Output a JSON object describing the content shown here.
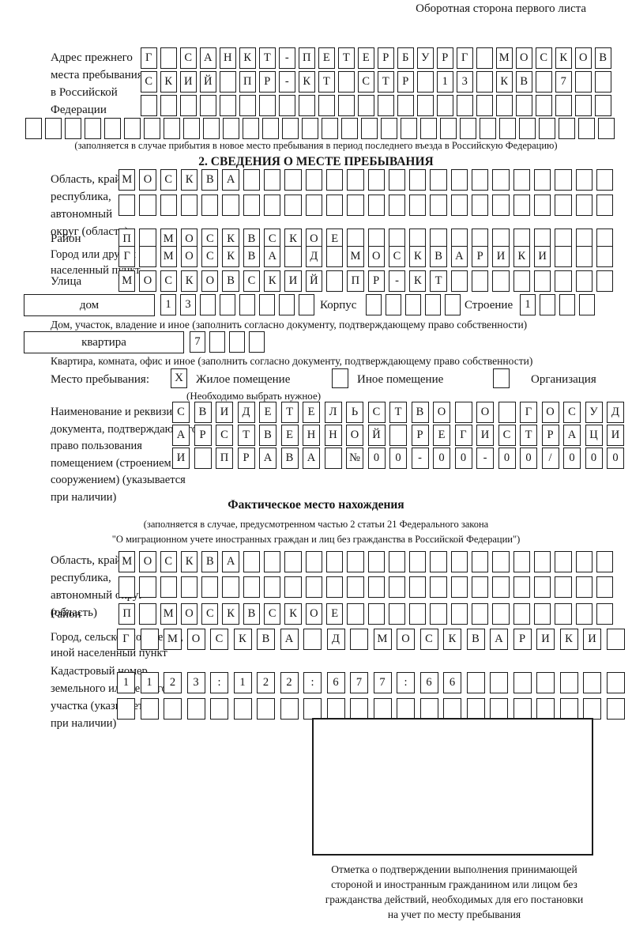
{
  "header_note": "Оборотная сторона первого листа",
  "prev_address": {
    "label_lines": [
      "Адрес прежнего",
      "места пребывания",
      "в Российской",
      "Федерации"
    ],
    "row1": {
      "len": 24,
      "text": "Г САНКТ-ПЕТЕРБУРГ МОСКОВ"
    },
    "row2": {
      "len": 24,
      "text": "СКИЙ ПР-КТ СТР 13 КВ 7"
    },
    "row3": {
      "len": 24,
      "text": ""
    },
    "row4": {
      "len": 30,
      "text": ""
    },
    "note": "(заполняется в случае прибытия в новое место пребывания в период последнего въезда в Российскую Федерацию)"
  },
  "section2": {
    "title": "2. СВЕДЕНИЯ О МЕСТЕ ПРЕБЫВАНИЯ",
    "region_label_lines": [
      "Область, край,",
      "республика,",
      "автономный",
      "округ (область)"
    ],
    "region_row1": {
      "len": 24,
      "text": "МОСКВА"
    },
    "region_row2": {
      "len": 24,
      "text": ""
    },
    "district_label": "Район",
    "district_row": {
      "len": 24,
      "text": "П МОСКВСКОЕ"
    },
    "city_label_lines": [
      "Город или другой",
      "населенный пункт"
    ],
    "city_row": {
      "len": 24,
      "text": "Г МОСКВА Д МОСКВАРИКИ"
    },
    "street_label": "Улица",
    "street_row": {
      "len": 24,
      "text": "МОСКОВСКИЙ ПР-КТ"
    },
    "house_label": "дом",
    "house_row": {
      "len": 8,
      "text": "13"
    },
    "korpus_label": "Корпус",
    "korpus_row": {
      "len": 5,
      "text": ""
    },
    "stroenie_label": "Строение",
    "stroenie_row": {
      "len": 4,
      "text": "1"
    },
    "house_caption": "Дом, участок, владение и иное (заполнить согласно документу, подтверждающему право собственности)",
    "apartment_label": "квартира",
    "apartment_row": {
      "len": 4,
      "text": "7"
    },
    "apartment_caption": "Квартира, комната, офис и иное (заполнить согласно документу, подтверждающему право собственности)",
    "stay": {
      "label": "Место пребывания:",
      "options": [
        {
          "label": "Жилое помещение",
          "mark": "X"
        },
        {
          "label": "Иное помещение",
          "mark": ""
        },
        {
          "label": "Организация",
          "mark": ""
        }
      ],
      "note": "(Необходимо выбрать нужное)"
    },
    "doc_label_lines": [
      "Наименование и реквизиты",
      "документа, подтверждающего",
      "право пользования",
      "помещением (строением,",
      "сооружением) (указывается",
      "при наличии)"
    ],
    "doc_row1": {
      "len": 21,
      "text": "СВИДЕТЕЛЬСТВО О ГОСУД"
    },
    "doc_row2": {
      "len": 21,
      "text": "АРСТВЕННОЙ РЕГИСТРАЦИ"
    },
    "doc_row3": {
      "len": 21,
      "text": "И ПРАВА №00-00-00/000"
    }
  },
  "actual": {
    "title": "Фактическое место нахождения",
    "note_line1": "(заполняется в случае, предусмотренном частью 2 статьи 21 Федерального закона",
    "note_line2": "\"О миграционном учете иностранных граждан и лиц без гражданства в Российской Федерации\")",
    "region_label_lines": [
      "Область, край,",
      "республика,",
      "автономный округ",
      "(область)"
    ],
    "region_row1": {
      "len": 24,
      "text": "МОСКВА"
    },
    "region_row2": {
      "len": 24,
      "text": ""
    },
    "district_label": "Район",
    "district_row": {
      "len": 24,
      "text": "П МОСКВСКОЕ"
    },
    "city_label_lines": [
      "Город, сельское поселение,",
      "иной населенный пункт"
    ],
    "city_row": {
      "len": 22,
      "text": "Г МОСКВА Д МОСКВАРИКИ"
    },
    "cadastre_label_lines": [
      "Кадастровый номер",
      "земельного или лесного",
      "участка (указывается",
      "при наличии)"
    ],
    "cadastre_row1": {
      "len": 22,
      "text": "1123:122:677:66"
    },
    "cadastre_row2": {
      "len": 22,
      "text": ""
    },
    "mark_caption_lines": [
      "Отметка о подтверждении выполнения принимающей",
      "стороной и иностранным гражданином или лицом без",
      "гражданства действий, необходимых для его постановки",
      "на учет по месту пребывания"
    ]
  }
}
